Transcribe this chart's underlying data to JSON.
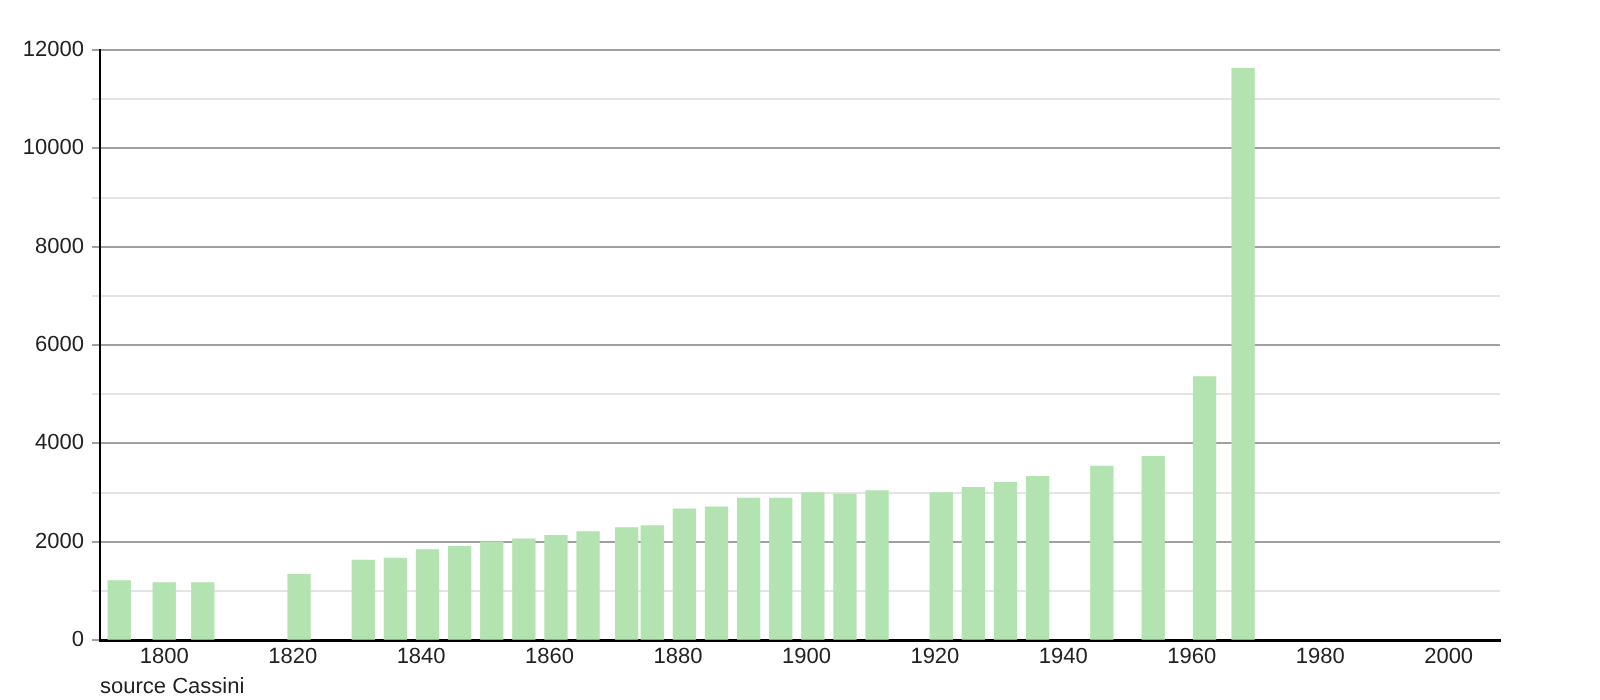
{
  "chart_data": {
    "type": "bar",
    "x": [
      1793,
      1800,
      1806,
      1821,
      1831,
      1836,
      1841,
      1846,
      1851,
      1856,
      1861,
      1866,
      1872,
      1876,
      1881,
      1886,
      1891,
      1896,
      1901,
      1906,
      1911,
      1921,
      1926,
      1931,
      1936,
      1946,
      1954,
      1962,
      1968
    ],
    "values": [
      1200,
      1160,
      1160,
      1330,
      1620,
      1660,
      1830,
      1900,
      1990,
      2050,
      2120,
      2200,
      2280,
      2320,
      2660,
      2700,
      2880,
      2880,
      2990,
      2960,
      3030,
      2990,
      3100,
      3200,
      3320,
      3530,
      3730,
      5350,
      11620
    ],
    "color": "#b3e3b0",
    "xlim": [
      1790,
      2008
    ],
    "xticks": [
      1800,
      1820,
      1840,
      1860,
      1880,
      1900,
      1920,
      1940,
      1960,
      1980,
      2000
    ],
    "ylim": [
      0,
      12000
    ],
    "yticks": [
      0,
      {
        "value": 1000,
        "label": null
      },
      2000,
      {
        "value": 3000,
        "label": null
      },
      4000,
      {
        "value": 5000,
        "label": null
      },
      6000,
      {
        "value": 7000,
        "label": null
      },
      8000,
      {
        "value": 9000,
        "label": null
      },
      10000,
      {
        "value": 11000,
        "label": null
      },
      12000
    ],
    "grid": "y",
    "annotations": [
      "source Cassini"
    ]
  }
}
